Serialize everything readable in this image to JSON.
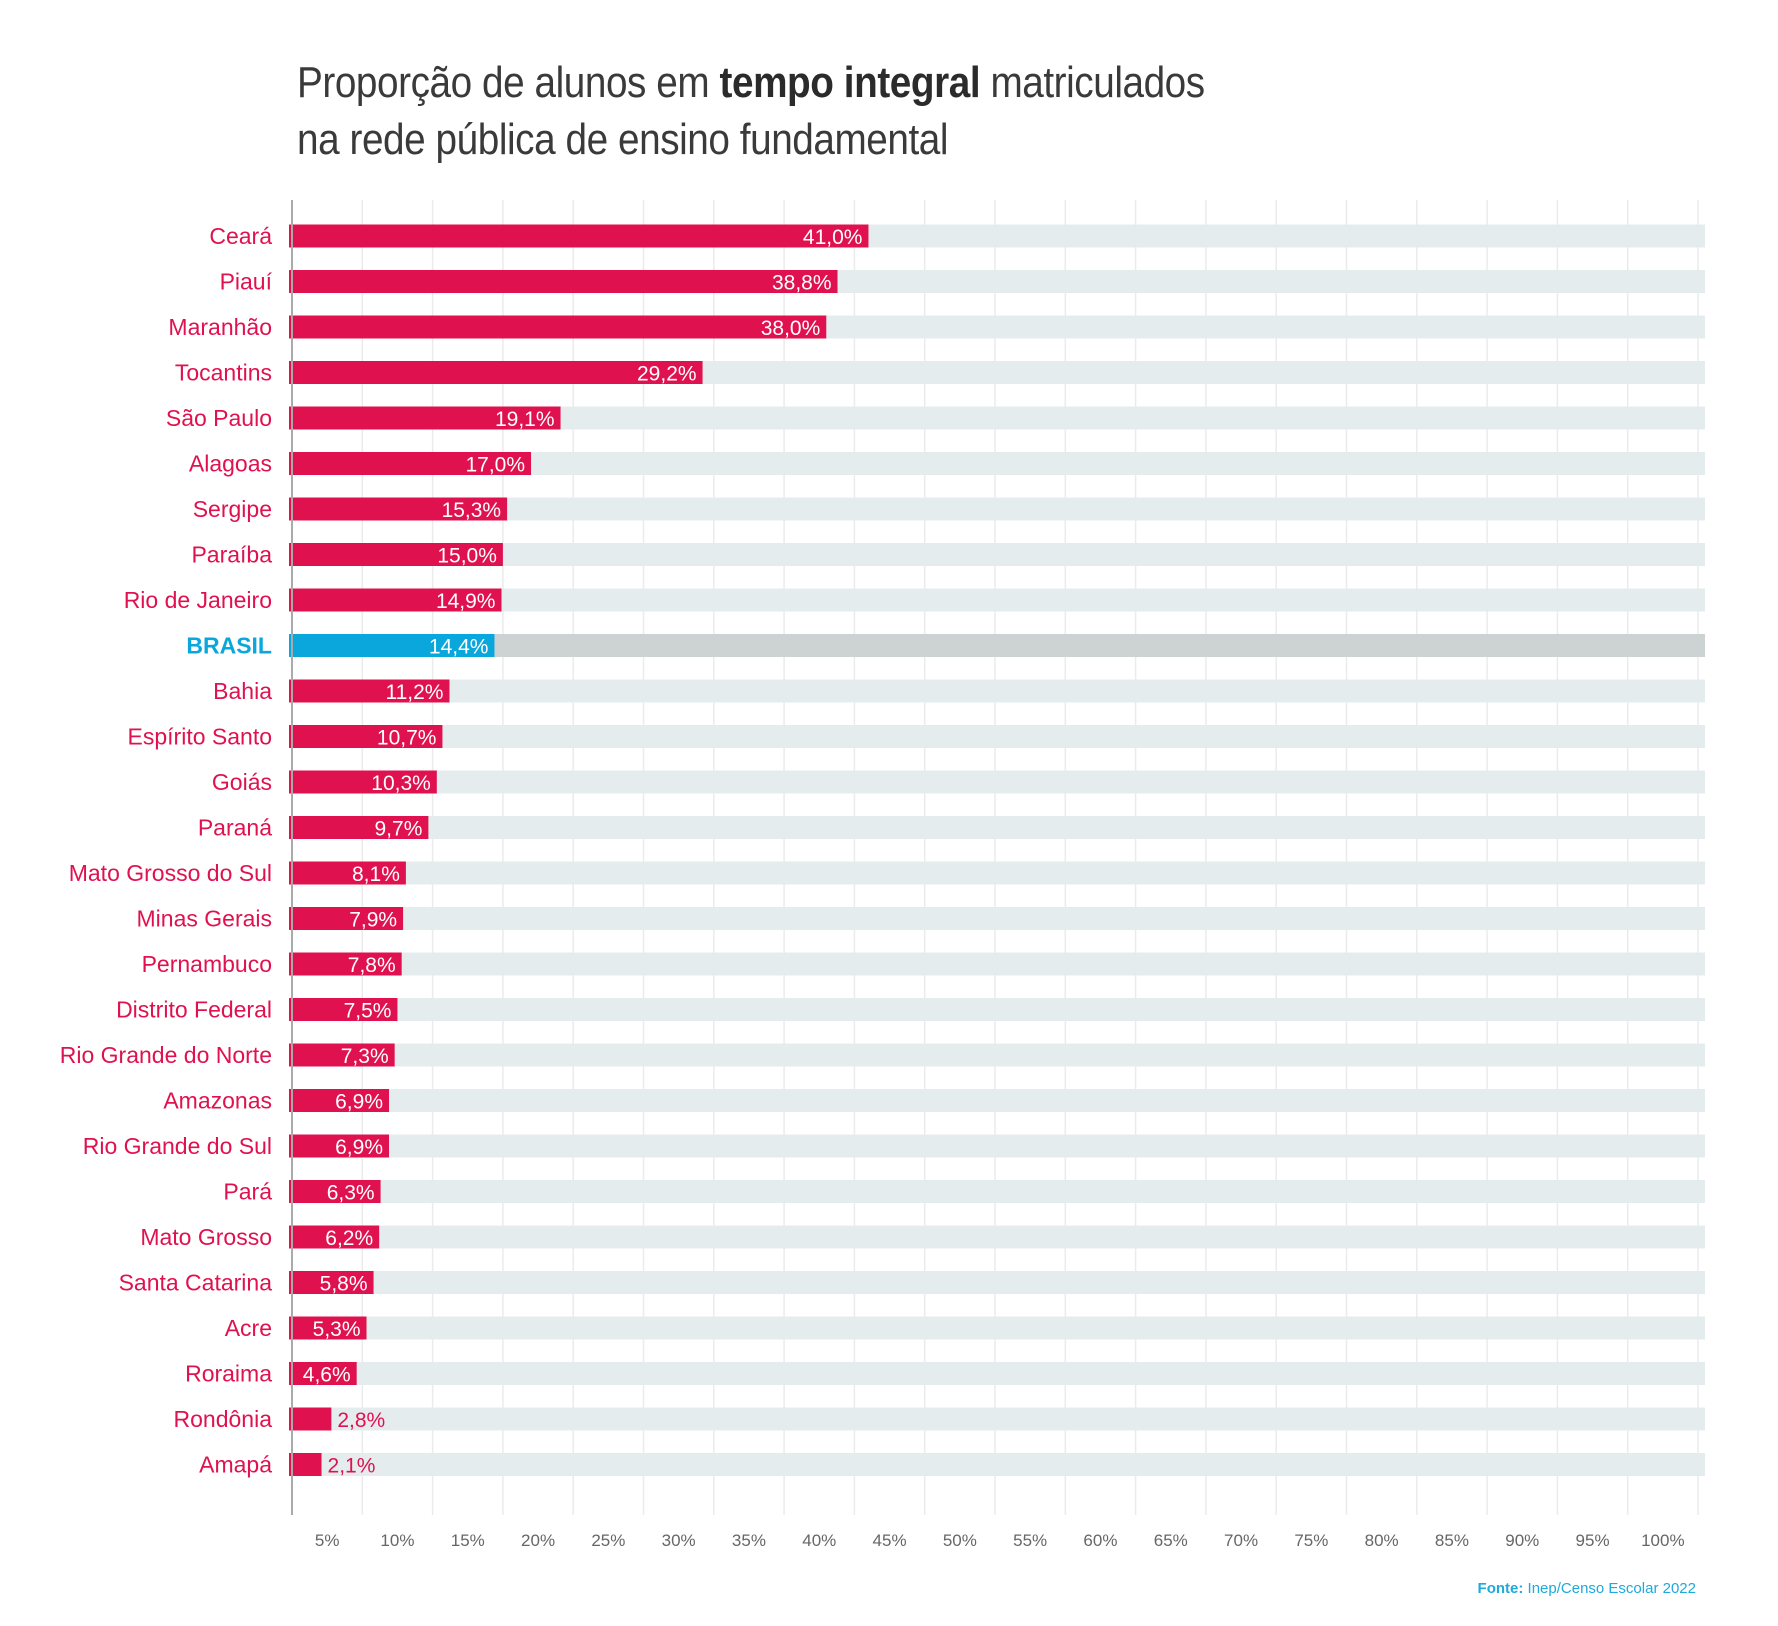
{
  "title": {
    "part1": "Proporção de alunos em ",
    "bold": "tempo integral",
    "part2": " matriculados",
    "line2": "na rede pública de ensino fundamental"
  },
  "source": {
    "label": "Fonte:",
    "text": " Inep/Censo Escolar 2022"
  },
  "colors": {
    "bar": "#e0114f",
    "highlight": "#0aa7dc",
    "track": "#e5ecee",
    "track_highlight": "#cdd3d2",
    "grid": "#ebebeb",
    "axis": "#aaaaaa"
  },
  "chart_data": {
    "type": "bar",
    "orientation": "horizontal",
    "title": "Proporção de alunos em tempo integral matriculados na rede pública de ensino fundamental",
    "xlabel": "",
    "ylabel": "",
    "xlim": [
      0,
      100
    ],
    "grid": true,
    "highlight": "BRASIL",
    "categories": [
      "Ceará",
      "Piauí",
      "Maranhão",
      "Tocantins",
      "São Paulo",
      "Alagoas",
      "Sergipe",
      "Paraíba",
      "Rio de Janeiro",
      "BRASIL",
      "Bahia",
      "Espírito Santo",
      "Goiás",
      "Paraná",
      "Mato Grosso do Sul",
      "Minas Gerais",
      "Pernambuco",
      "Distrito Federal",
      "Rio Grande do Norte",
      "Amazonas",
      "Rio Grande do Sul",
      "Pará",
      "Mato Grosso",
      "Santa Catarina",
      "Acre",
      "Roraima",
      "Rondônia",
      "Amapá"
    ],
    "values": [
      41.0,
      38.8,
      38.0,
      29.2,
      19.1,
      17.0,
      15.3,
      15.0,
      14.9,
      14.4,
      11.2,
      10.7,
      10.3,
      9.7,
      8.1,
      7.9,
      7.8,
      7.5,
      7.3,
      6.9,
      6.9,
      6.3,
      6.2,
      5.8,
      5.3,
      4.6,
      2.8,
      2.1
    ],
    "value_labels": [
      "41,0%",
      "38,8%",
      "38,0%",
      "29,2%",
      "19,1%",
      "17,0%",
      "15,3%",
      "15,0%",
      "14,9%",
      "14,4%",
      "11,2%",
      "10,7%",
      "10,3%",
      "9,7%",
      "8,1%",
      "7,9%",
      "7,8%",
      "7,5%",
      "7,3%",
      "6,9%",
      "6,9%",
      "6,3%",
      "6,2%",
      "5,8%",
      "5,3%",
      "4,6%",
      "2,8%",
      "2,1%"
    ],
    "x_ticks": [
      5,
      10,
      15,
      20,
      25,
      30,
      35,
      40,
      45,
      50,
      55,
      60,
      65,
      70,
      75,
      80,
      85,
      90,
      95,
      100
    ],
    "x_tick_labels": [
      "5%",
      "10%",
      "15%",
      "20%",
      "25%",
      "30%",
      "35%",
      "40%",
      "45%",
      "50%",
      "55%",
      "60%",
      "65%",
      "70%",
      "75%",
      "80%",
      "85%",
      "90%",
      "95%",
      "100%"
    ]
  }
}
